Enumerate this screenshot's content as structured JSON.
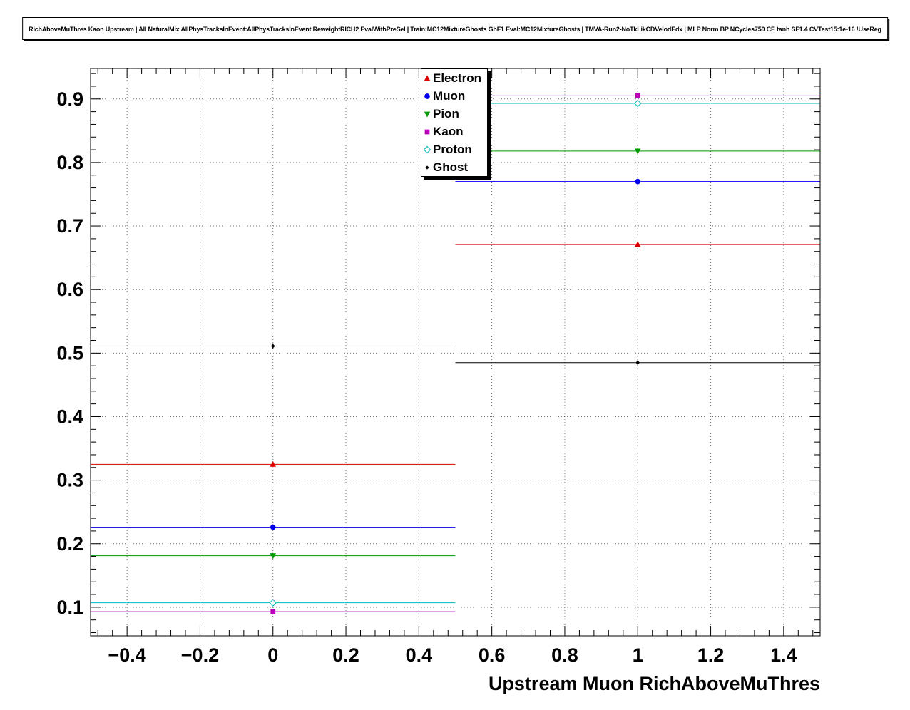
{
  "header": {
    "title": "RichAboveMuThres Kaon Upstream | All NaturalMix AllPhysTracksInEvent:AllPhysTracksInEvent ReweightRICH2 EvalWithPreSel | Train:MC12MixtureGhosts GhF1 Eval:MC12MixtureGhosts | TMVA-Run2-NoTkLikCDVelodEdx | MLP Norm BP NCycles750 CE tanh SF1.4 CVTest15:1e-16 !UseReg"
  },
  "chart_data": {
    "type": "scatter",
    "title": "",
    "xlabel": "Upstream Muon RichAboveMuThres",
    "ylabel": "",
    "xlim": [
      -0.5,
      1.5
    ],
    "ylim": [
      0.055,
      0.948
    ],
    "x_ticks": [
      -0.4,
      -0.2,
      0,
      0.2,
      0.4,
      0.6,
      0.8,
      1,
      1.2,
      1.4
    ],
    "x_tick_labels": [
      "−0.4",
      "−0.2",
      "0",
      "0.2",
      "0.4",
      "0.6",
      "0.8",
      "1",
      "1.2",
      "1.4"
    ],
    "y_ticks": [
      0.1,
      0.2,
      0.3,
      0.4,
      0.5,
      0.6,
      0.7,
      0.8,
      0.9
    ],
    "y_tick_labels": [
      "0.1",
      "0.2",
      "0.3",
      "0.4",
      "0.5",
      "0.6",
      "0.7",
      "0.8",
      "0.9"
    ],
    "x_minor_step": 0.04,
    "y_minor_step": 0.02,
    "grid": "dotted",
    "legend_position": "top-center",
    "x": [
      0,
      1
    ],
    "xerr": 0.5,
    "series": [
      {
        "name": "Electron",
        "color": "#dd0000",
        "marker": "triangle-up",
        "values": [
          0.325,
          0.671
        ]
      },
      {
        "name": "Muon",
        "color": "#0000ee",
        "marker": "circle",
        "values": [
          0.226,
          0.77
        ]
      },
      {
        "name": "Pion",
        "color": "#009900",
        "marker": "triangle-down",
        "values": [
          0.181,
          0.818
        ]
      },
      {
        "name": "Kaon",
        "color": "#bb00bb",
        "marker": "square",
        "values": [
          0.093,
          0.905
        ]
      },
      {
        "name": "Proton",
        "color": "#00b8b8",
        "marker": "diamond-open",
        "values": [
          0.107,
          0.893
        ]
      },
      {
        "name": "Ghost",
        "color": "#000000",
        "marker": "diamond-small",
        "values": [
          0.511,
          0.485
        ]
      }
    ]
  }
}
